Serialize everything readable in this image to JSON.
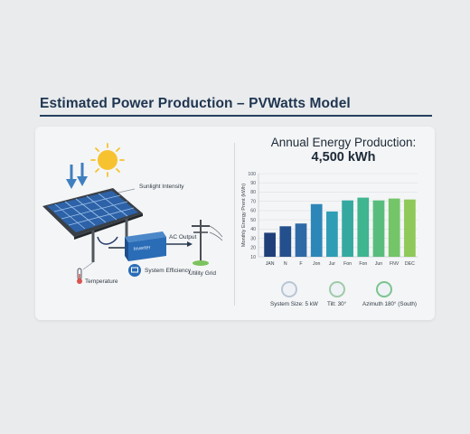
{
  "page": {
    "title": "Estimated Power Production – PVWatts Model"
  },
  "diagram": {
    "labels": {
      "sunlight": "Sunlight Intensity",
      "temperature": "Temperature",
      "ac_output": "AC Output",
      "efficiency": "System Efficiency",
      "grid": "Utility Grid",
      "inverter": "Inverter"
    },
    "icons": [
      "sun-icon",
      "sunlight-arrow-icon",
      "solar-panel-icon",
      "inverter-icon",
      "thermometer-icon",
      "efficiency-icon",
      "utility-pole-icon"
    ]
  },
  "chart_title": {
    "line1": "Annual Energy Production:",
    "line2": "4,500 kWh"
  },
  "chart_data": {
    "type": "bar",
    "categories": [
      "JAN",
      "N",
      "F",
      "Jon",
      "Jur",
      "Fon",
      "Fon",
      "Jun",
      "FNV",
      "DEC"
    ],
    "values": [
      36,
      43,
      46,
      67,
      59,
      71,
      74,
      71,
      73,
      72
    ],
    "ylabel": "Monthly Energy Prent (kWh)",
    "yticks": [
      10,
      20,
      30,
      40,
      50,
      60,
      70,
      80,
      90,
      100
    ],
    "ylim": [
      10,
      100
    ],
    "grid": true,
    "colors": [
      "#1f3f7a",
      "#244f8d",
      "#2f6aa6",
      "#2d86b8",
      "#2f9db5",
      "#35a9a0",
      "#3fb590",
      "#58bd7c",
      "#74c468",
      "#8ec95a"
    ]
  },
  "specs": [
    {
      "label": "System Size: 5 kW",
      "icon": "panel-size-icon"
    },
    {
      "label": "Tilt: 30°",
      "icon": "tilt-icon"
    },
    {
      "label": "Azimuth 180° (South)",
      "icon": "compass-icon"
    }
  ]
}
